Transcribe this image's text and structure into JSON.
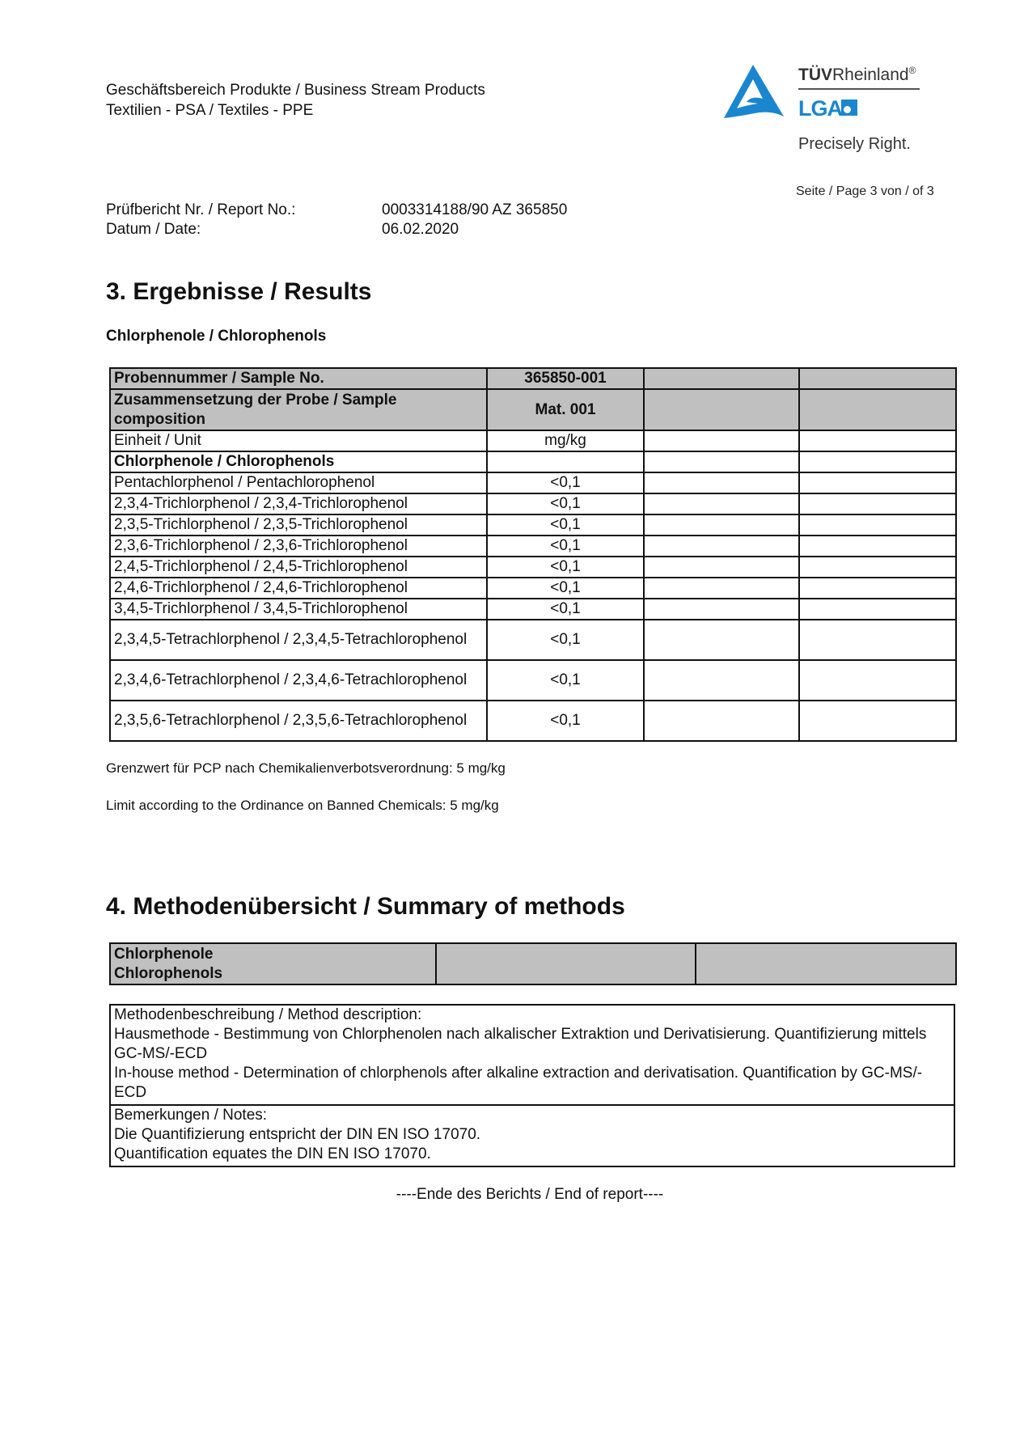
{
  "header": {
    "line1": "Geschäftsbereich Produkte / Business Stream Products",
    "line2": "Textilien - PSA / Textiles - PPE",
    "logo": {
      "brand": "TÜVRheinland",
      "registered": "®",
      "sub": "LGA",
      "tagline": "Precisely Right.",
      "color": "#1a86d0"
    },
    "page": "Seite / Page 3 von / of 3"
  },
  "report": {
    "no_label": "Prüfbericht Nr. / Report No.:",
    "no_value": "0003314188/90 AZ 365850",
    "date_label": "Datum / Date:",
    "date_value": "06.02.2020"
  },
  "results": {
    "heading": "3. Ergebnisse / Results",
    "subheading": "Chlorphenole / Chlorophenols",
    "table": {
      "sample_label": "Probennummer / Sample No.",
      "sample_value": "365850-001",
      "composition_label": "Zusammensetzung der Probe / Sample composition",
      "composition_value": "Mat. 001",
      "unit_label": "Einheit / Unit",
      "unit_value": "mg/kg",
      "group_label": "Chlorphenole / Chlorophenols",
      "rows": [
        {
          "name": "Pentachlorphenol / Pentachlorophenol",
          "value": "<0,1"
        },
        {
          "name": "2,3,4-Trichlorphenol / 2,3,4-Trichlorophenol",
          "value": "<0,1"
        },
        {
          "name": "2,3,5-Trichlorphenol / 2,3,5-Trichlorophenol",
          "value": "<0,1"
        },
        {
          "name": "2,3,6-Trichlorphenol / 2,3,6-Trichlorophenol",
          "value": "<0,1"
        },
        {
          "name": "2,4,5-Trichlorphenol / 2,4,5-Trichlorophenol",
          "value": "<0,1"
        },
        {
          "name": "2,4,6-Trichlorphenol / 2,4,6-Trichlorophenol",
          "value": "<0,1"
        },
        {
          "name": "3,4,5-Trichlorphenol / 3,4,5-Trichlorophenol",
          "value": "<0,1"
        },
        {
          "name": "2,3,4,5-Tetrachlorphenol / 2,3,4,5-Tetrachlorophenol",
          "value": "<0,1"
        },
        {
          "name": "2,3,4,6-Tetrachlorphenol / 2,3,4,6-Tetrachlorophenol",
          "value": "<0,1"
        },
        {
          "name": "2,3,5,6-Tetrachlorphenol / 2,3,5,6-Tetrachlorophenol",
          "value": "<0,1"
        }
      ]
    },
    "limit_de": "Grenzwert für PCP nach Chemikalienverbotsverordnung: 5 mg/kg",
    "limit_en": "Limit according to the Ordinance on Banned Chemicals: 5 mg/kg"
  },
  "methods": {
    "heading": "4. Methodenübersicht / Summary of methods",
    "group_de": "Chlorphenole",
    "group_en": "Chlorophenols",
    "desc_label": "Methodenbeschreibung / Method description:",
    "desc_de": "Hausmethode - Bestimmung von Chlorphenolen nach alkalischer Extraktion und Derivatisierung. Quantifizierung mittels GC-MS/-ECD",
    "desc_en": "In-house method - Determination of chlorphenols after alkaline extraction and derivatisation. Quantification by GC-MS/-ECD",
    "notes_label": "Bemerkungen / Notes:",
    "notes_de": "Die Quantifizierung entspricht der DIN EN ISO 17070.",
    "notes_en": "Quantification equates the DIN EN ISO 17070."
  },
  "footer": {
    "end": "----Ende des Berichts / End of report----"
  }
}
